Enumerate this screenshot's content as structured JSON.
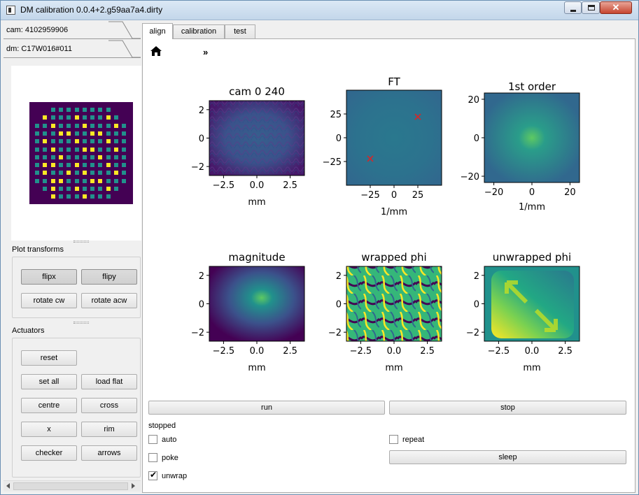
{
  "window": {
    "title": "DM calibration 0.0.4+2.g59aa7a4.dirty",
    "close_glyph": "✕"
  },
  "left": {
    "devices": [
      {
        "label": "cam: 4102959906"
      },
      {
        "label": "dm: C17W016#011"
      }
    ],
    "plot_transforms": {
      "title": "Plot transforms",
      "buttons": [
        {
          "label": "flipx",
          "pressed": true
        },
        {
          "label": "flipy",
          "pressed": true
        },
        {
          "label": "rotate cw"
        },
        {
          "label": "rotate acw"
        }
      ]
    },
    "actuators": {
      "title": "Actuators",
      "buttons": [
        {
          "label": "reset"
        },
        {
          "label": "set all"
        },
        {
          "label": "load flat"
        },
        {
          "label": "centre"
        },
        {
          "label": "cross"
        },
        {
          "label": "x"
        },
        {
          "label": "rim"
        },
        {
          "label": "checker"
        },
        {
          "label": "arrows"
        }
      ]
    },
    "dm_preview": {
      "colors": {
        "background": "#440154",
        "off": "#21918c",
        "on": "#fde725"
      }
    }
  },
  "tabs": [
    {
      "label": "align",
      "active": true
    },
    {
      "label": "calibration"
    },
    {
      "label": "test"
    }
  ],
  "toolbar": {
    "home_icon": "home-icon",
    "more_glyph": "»"
  },
  "plots": [
    {
      "title": "cam   0  240",
      "xlabel": "mm",
      "xticks": [
        "−2.5",
        "0.0",
        "2.5"
      ],
      "yticks": [
        "2",
        "0",
        "−2"
      ]
    },
    {
      "title": "FT",
      "xlabel": "1/mm",
      "xticks": [
        "−25",
        "0",
        "25"
      ],
      "yticks": [
        "25",
        "0",
        "−25"
      ],
      "markers": [
        {
          "x": -25,
          "y": -22
        },
        {
          "x": 25,
          "y": 22
        }
      ]
    },
    {
      "title": "1st order",
      "xlabel": "1/mm",
      "xticks": [
        "−20",
        "0",
        "20"
      ],
      "yticks": [
        "20",
        "0",
        "−20"
      ]
    },
    {
      "title": "magnitude",
      "xlabel": "mm",
      "xticks": [
        "−2.5",
        "0.0",
        "2.5"
      ],
      "yticks": [
        "2",
        "0",
        "−2"
      ]
    },
    {
      "title": "wrapped phi",
      "xlabel": "mm",
      "xticks": [
        "−2.5",
        "0.0",
        "2.5"
      ],
      "yticks": [
        "2",
        "0",
        "−2"
      ]
    },
    {
      "title": "unwrapped phi",
      "xlabel": "mm",
      "xticks": [
        "−2.5",
        "0.0",
        "2.5"
      ],
      "yticks": [
        "2",
        "0",
        "−2"
      ]
    }
  ],
  "controls": {
    "run_label": "run",
    "stop_label": "stop",
    "status": "stopped",
    "auto": {
      "label": "auto",
      "checked": false
    },
    "repeat": {
      "label": "repeat",
      "checked": false
    },
    "poke": {
      "label": "poke",
      "checked": false
    },
    "sleep_label": "sleep",
    "unwrap": {
      "label": "unwrap",
      "checked": true
    }
  },
  "colors": {
    "viridis_dark": "#440154",
    "viridis_mid": "#21918c",
    "viridis_light": "#fde725",
    "marker": "#d62728"
  }
}
